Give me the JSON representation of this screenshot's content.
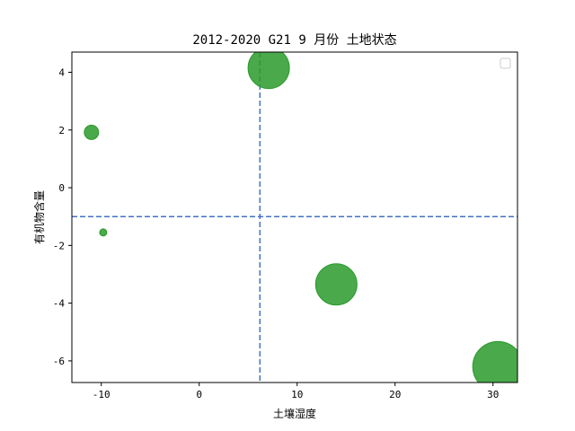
{
  "chart_data": {
    "type": "scatter",
    "title": "2012-2020 G21 9 月份 土地状态",
    "xlabel": "土壤湿度",
    "ylabel": "有机物含量",
    "xlim": [
      -13,
      32.5
    ],
    "ylim": [
      -6.75,
      4.7
    ],
    "x_ticks": [
      "-10",
      "0",
      "10",
      "20",
      "30"
    ],
    "y_ticks": [
      "-6",
      "-4",
      "-2",
      "0",
      "2",
      "4"
    ],
    "grid": false,
    "legend": {
      "placement": "top-right",
      "entries": []
    },
    "points": [
      {
        "x": -11.0,
        "y": 1.92,
        "size": 8
      },
      {
        "x": -9.8,
        "y": -1.55,
        "size": 4
      },
      {
        "x": 7.1,
        "y": 4.15,
        "size": 23
      },
      {
        "x": 14.0,
        "y": -3.35,
        "size": 23
      },
      {
        "x": 30.5,
        "y": -6.2,
        "size": 28
      }
    ],
    "reference_lines": {
      "vertical_x": 6.2,
      "horizontal_y": -1.0
    },
    "colors": {
      "points": "#2a9a2a",
      "reference": "#4472c4",
      "axes": "#000000"
    }
  }
}
